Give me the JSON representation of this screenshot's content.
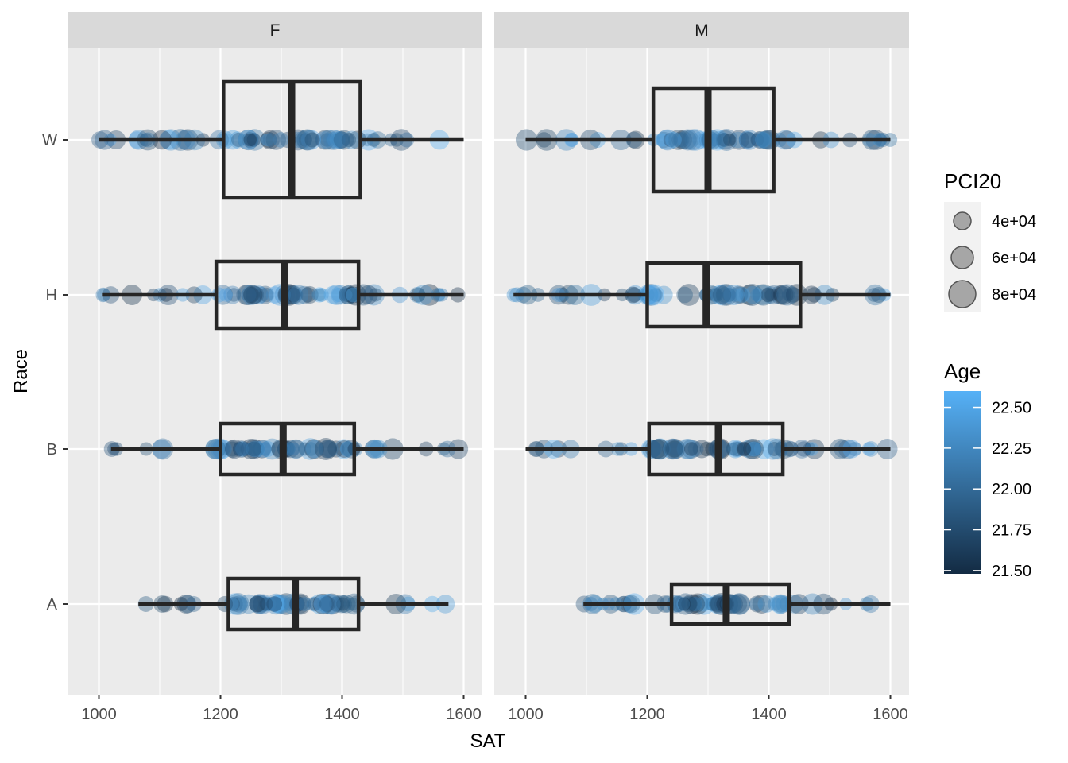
{
  "chart_data": {
    "type": "boxplot",
    "xlabel": "SAT",
    "ylabel": "Race",
    "facets": [
      "F",
      "M"
    ],
    "categories": [
      "A",
      "B",
      "H",
      "W"
    ],
    "xlim": [
      950,
      1600
    ],
    "x_ticks": [
      1000,
      1200,
      1400,
      1600
    ],
    "grid": true,
    "legend_position": "right",
    "point_color_low": "#132b43",
    "point_color_high": "#56b1f7",
    "boxes": {
      "F": {
        "W": {
          "min": 1000,
          "q1": 1205,
          "median": 1317,
          "q3": 1430,
          "max": 1600
        },
        "H": {
          "min": 1005,
          "q1": 1193,
          "median": 1305,
          "q3": 1427,
          "max": 1600
        },
        "B": {
          "min": 1020,
          "q1": 1200,
          "median": 1303,
          "q3": 1420,
          "max": 1600
        },
        "A": {
          "min": 1065,
          "q1": 1213,
          "median": 1323,
          "q3": 1427,
          "max": 1575
        }
      },
      "M": {
        "W": {
          "min": 1000,
          "q1": 1210,
          "median": 1300,
          "q3": 1408,
          "max": 1600
        },
        "H": {
          "min": 980,
          "q1": 1200,
          "median": 1297,
          "q3": 1452,
          "max": 1600
        },
        "B": {
          "min": 1000,
          "q1": 1203,
          "median": 1317,
          "q3": 1423,
          "max": 1600
        },
        "A": {
          "min": 1095,
          "q1": 1240,
          "median": 1330,
          "q3": 1433,
          "max": 1600
        }
      }
    },
    "legend_size": {
      "title": "PCI20",
      "labels": [
        "4e+04",
        "6e+04",
        "8e+04"
      ]
    },
    "legend_color": {
      "title": "Age",
      "labels": [
        "22.50",
        "22.25",
        "22.00",
        "21.75",
        "21.50"
      ],
      "values": [
        22.5,
        22.25,
        22.0,
        21.75,
        21.5
      ],
      "range": [
        21.48,
        22.6
      ]
    }
  }
}
